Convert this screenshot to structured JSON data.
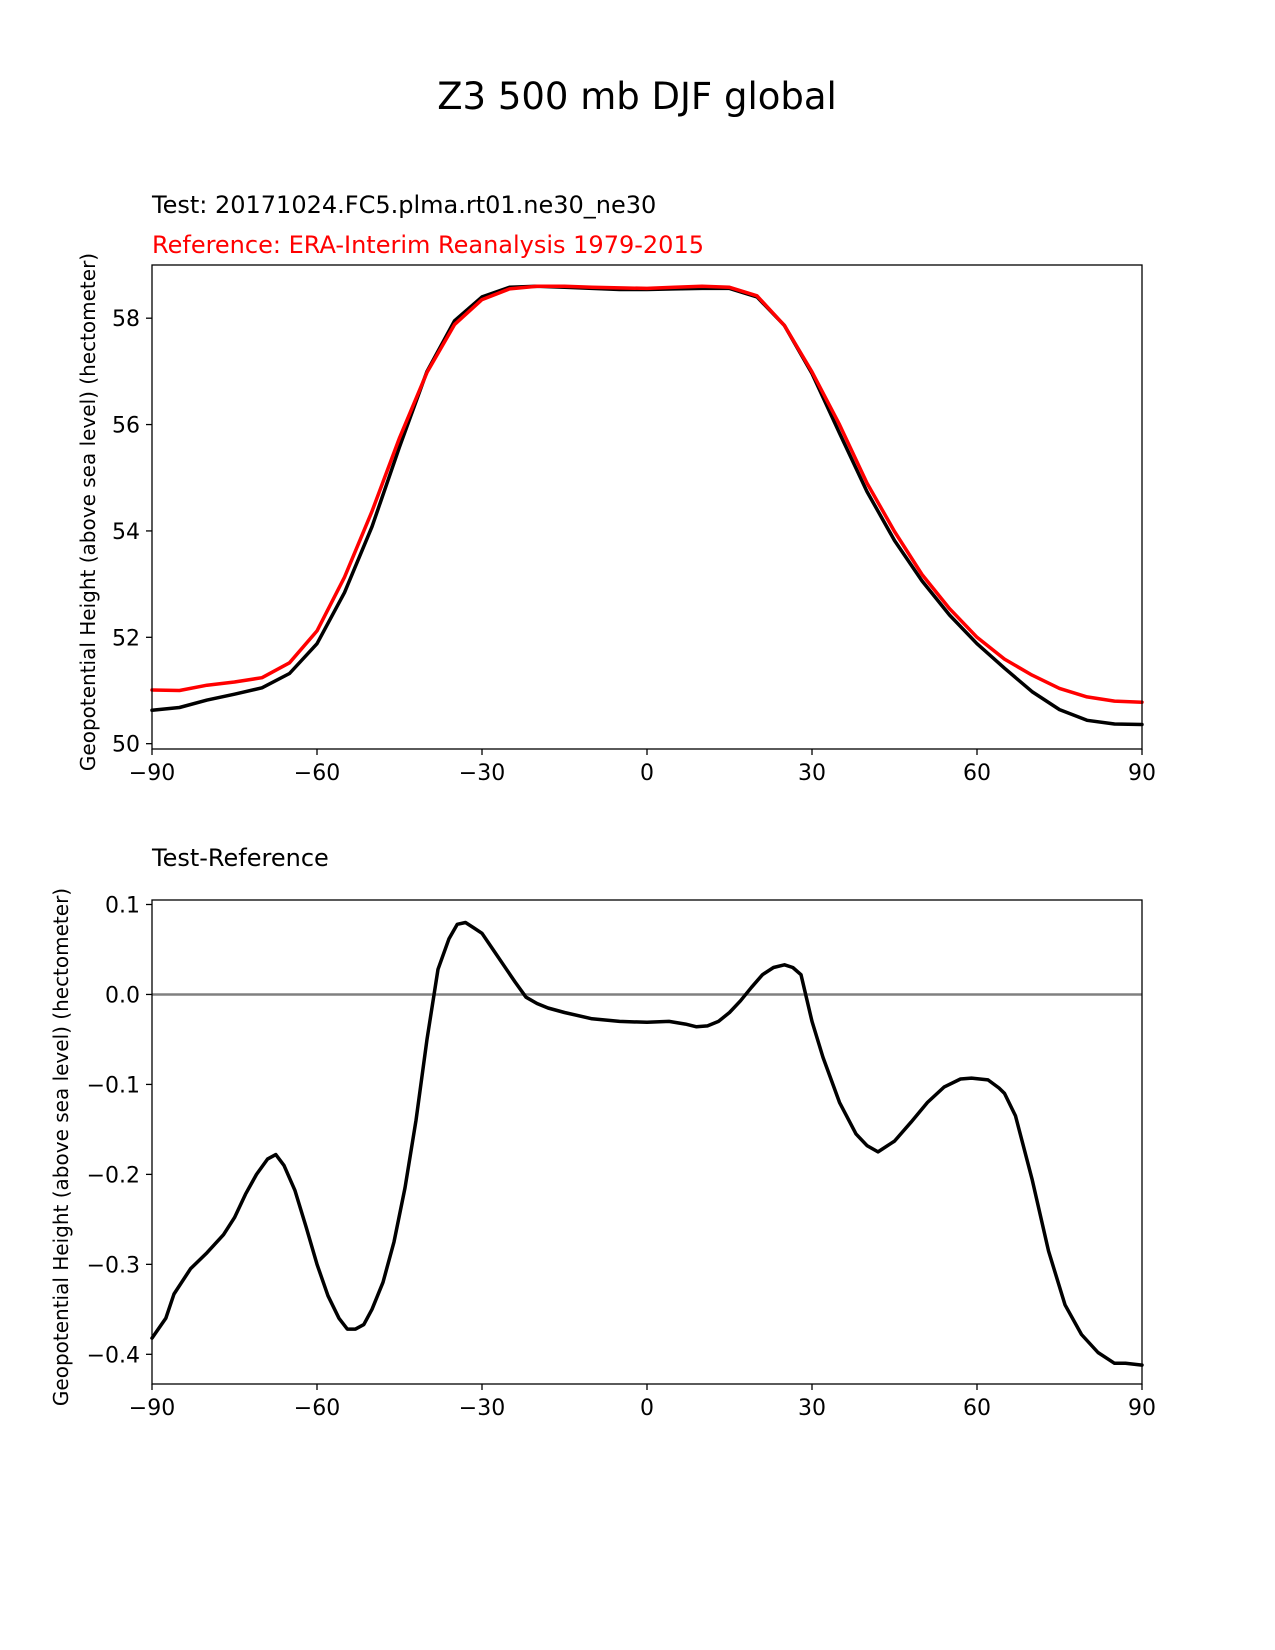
{
  "figure_title": "Z3 500 mb DJF global",
  "colors": {
    "test": "#000000",
    "reference": "#ff0000",
    "zero_line": "#808080"
  },
  "chart_data": [
    {
      "type": "line",
      "test_label": "Test: 20171024.FC5.plma.rt01.ne30_ne30",
      "reference_label": "Reference: ERA-Interim Reanalysis 1979-2015",
      "xlabel": "",
      "ylabel": "Geopotential Height (above sea level) (hectometer)",
      "xlim": [
        -90,
        90
      ],
      "ylim": [
        49.9,
        59.0
      ],
      "xticks": [
        -90,
        -60,
        -30,
        0,
        30,
        60,
        90
      ],
      "xtick_labels": [
        "−90",
        "−60",
        "−30",
        "0",
        "30",
        "60",
        "90"
      ],
      "yticks": [
        50,
        52,
        54,
        56,
        58
      ],
      "ytick_labels": [
        "50",
        "52",
        "54",
        "56",
        "58"
      ],
      "series": [
        {
          "name": "Test",
          "color": "#000000",
          "x": [
            -90,
            -85,
            -80,
            -75,
            -70,
            -65,
            -60,
            -55,
            -50,
            -45,
            -40,
            -35,
            -30,
            -25,
            -20,
            -15,
            -10,
            -5,
            0,
            5,
            10,
            15,
            20,
            25,
            30,
            35,
            40,
            45,
            50,
            55,
            60,
            65,
            70,
            75,
            80,
            85,
            90
          ],
          "y": [
            50.63,
            50.68,
            50.82,
            50.93,
            51.05,
            51.32,
            51.88,
            52.84,
            54.08,
            55.58,
            57.0,
            57.95,
            58.4,
            58.58,
            58.6,
            58.58,
            58.56,
            58.54,
            58.54,
            58.55,
            58.56,
            58.56,
            58.4,
            57.86,
            56.96,
            55.84,
            54.74,
            53.82,
            53.06,
            52.42,
            51.88,
            51.42,
            50.98,
            50.64,
            50.44,
            50.37,
            50.36
          ]
        },
        {
          "name": "Reference",
          "color": "#ff0000",
          "x": [
            -90,
            -85,
            -80,
            -75,
            -70,
            -65,
            -60,
            -55,
            -50,
            -45,
            -40,
            -35,
            -30,
            -25,
            -20,
            -15,
            -10,
            -5,
            0,
            5,
            10,
            15,
            20,
            25,
            30,
            35,
            40,
            45,
            50,
            55,
            60,
            65,
            70,
            75,
            80,
            85,
            90
          ],
          "y": [
            51.01,
            51.0,
            51.1,
            51.16,
            51.24,
            51.52,
            52.12,
            53.13,
            54.37,
            55.75,
            56.98,
            57.88,
            58.35,
            58.55,
            58.6,
            58.6,
            58.58,
            58.57,
            58.56,
            58.58,
            58.6,
            58.58,
            58.42,
            57.86,
            56.99,
            56.0,
            54.9,
            53.99,
            53.18,
            52.54,
            52.0,
            51.59,
            51.29,
            51.04,
            50.88,
            50.8,
            50.78
          ]
        }
      ]
    },
    {
      "type": "line",
      "title": "Test-Reference",
      "xlabel": "",
      "ylabel": "Geopotential Height (above sea level) (hectometer)",
      "xlim": [
        -90,
        90
      ],
      "ylim": [
        -0.433,
        0.105
      ],
      "xticks": [
        -90,
        -60,
        -30,
        0,
        30,
        60,
        90
      ],
      "xtick_labels": [
        "−90",
        "−60",
        "−30",
        "0",
        "30",
        "60",
        "90"
      ],
      "yticks": [
        0.1,
        0.0,
        -0.1,
        -0.2,
        -0.3,
        -0.4
      ],
      "ytick_labels": [
        "0.1",
        "0.0",
        "−0.1",
        "−0.2",
        "−0.3",
        "−0.4"
      ],
      "zero_line": 0,
      "series": [
        {
          "name": "Test-Reference",
          "color": "#000000",
          "x": [
            -90,
            -87.5,
            -86,
            -83,
            -80,
            -77,
            -75,
            -73,
            -71,
            -69,
            -67.5,
            -66,
            -64,
            -62,
            -60,
            -58,
            -56,
            -54.5,
            -53,
            -51.5,
            -50,
            -48,
            -46,
            -44,
            -42,
            -40,
            -38,
            -36,
            -34.5,
            -33,
            -31.5,
            -30,
            -28,
            -26,
            -24,
            -22,
            -20,
            -18,
            -15,
            -10,
            -5,
            0,
            4,
            7,
            9,
            11,
            13,
            15,
            17,
            19,
            21,
            23,
            25,
            26.5,
            28,
            30,
            32,
            35,
            38,
            40,
            42,
            45,
            48,
            51,
            54,
            57,
            59,
            62,
            64,
            65,
            67,
            70,
            73,
            76,
            79,
            82,
            85,
            87,
            90
          ],
          "y": [
            -0.382,
            -0.36,
            -0.333,
            -0.305,
            -0.287,
            -0.267,
            -0.248,
            -0.222,
            -0.2,
            -0.183,
            -0.178,
            -0.19,
            -0.218,
            -0.258,
            -0.3,
            -0.335,
            -0.36,
            -0.372,
            -0.372,
            -0.367,
            -0.35,
            -0.32,
            -0.275,
            -0.215,
            -0.14,
            -0.05,
            0.028,
            0.062,
            0.078,
            0.08,
            0.074,
            0.068,
            0.05,
            0.032,
            0.014,
            -0.003,
            -0.01,
            -0.015,
            -0.02,
            -0.027,
            -0.03,
            -0.031,
            -0.03,
            -0.033,
            -0.036,
            -0.035,
            -0.03,
            -0.02,
            -0.007,
            0.008,
            0.022,
            0.03,
            0.033,
            0.03,
            0.022,
            -0.03,
            -0.07,
            -0.12,
            -0.155,
            -0.168,
            -0.175,
            -0.163,
            -0.142,
            -0.12,
            -0.103,
            -0.094,
            -0.093,
            -0.095,
            -0.104,
            -0.11,
            -0.135,
            -0.205,
            -0.285,
            -0.345,
            -0.378,
            -0.398,
            -0.41,
            -0.41,
            -0.412
          ]
        }
      ]
    }
  ]
}
